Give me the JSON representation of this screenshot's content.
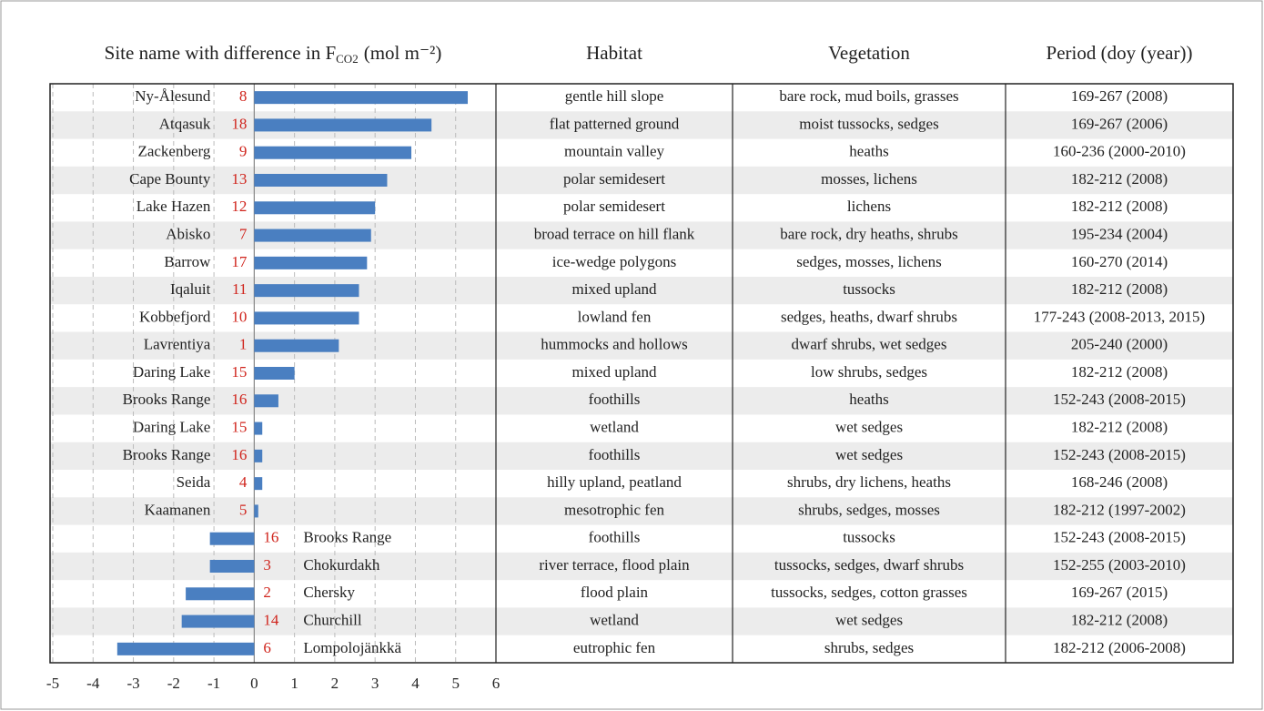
{
  "chart_data": {
    "type": "bar",
    "orientation": "horizontal",
    "title": "Site name with difference in F",
    "title_subscript": "CO2",
    "unit": "(mol m⁻²)",
    "categories": [
      "Ny-Ålesund",
      "Atqasuk",
      "Zackenberg",
      "Cape Bounty",
      "Lake Hazen",
      "Abisko",
      "Barrow",
      "Iqaluit",
      "Kobbefjord",
      "Lavrentiya",
      "Daring Lake",
      "Brooks Range",
      "Daring Lake",
      "Brooks Range",
      "Seida",
      "Kaamanen",
      "Brooks Range",
      "Chokurdakh",
      "Chersky",
      "Churchill",
      "Lompolojänkkä"
    ],
    "site_ids": [
      8,
      18,
      9,
      13,
      12,
      7,
      17,
      11,
      10,
      1,
      15,
      16,
      15,
      16,
      4,
      5,
      16,
      3,
      2,
      14,
      6
    ],
    "values": [
      5.3,
      4.4,
      3.9,
      3.3,
      3.0,
      2.9,
      2.8,
      2.6,
      2.6,
      2.1,
      1.0,
      0.6,
      0.2,
      0.2,
      0.2,
      0.1,
      -1.1,
      -1.1,
      -1.7,
      -1.8,
      -3.4
    ],
    "color": "#4a7fc1",
    "xlim": [
      -5,
      6
    ],
    "xticks": [
      -5,
      -4,
      -3,
      -2,
      -1,
      0,
      1,
      2,
      3,
      4,
      5,
      6
    ],
    "grid": true
  },
  "table": {
    "columns": [
      "Habitat",
      "Vegetation",
      "Period (doy (year))"
    ],
    "rows": [
      [
        "gentle hill slope",
        "bare rock, mud boils, grasses",
        "169-267 (2008)"
      ],
      [
        "flat patterned ground",
        "moist tussocks, sedges",
        "169-267 (2006)"
      ],
      [
        "mountain valley",
        "heaths",
        "160-236 (2000-2010)"
      ],
      [
        "polar semidesert",
        "mosses, lichens",
        "182-212 (2008)"
      ],
      [
        "polar semidesert",
        "lichens",
        "182-212 (2008)"
      ],
      [
        "broad terrace on hill flank",
        "bare rock, dry heaths, shrubs",
        "195-234 (2004)"
      ],
      [
        "ice-wedge polygons",
        "sedges, mosses, lichens",
        "160-270 (2014)"
      ],
      [
        "mixed upland",
        "tussocks",
        "182-212 (2008)"
      ],
      [
        "lowland fen",
        "sedges, heaths, dwarf shrubs",
        "177-243 (2008-2013, 2015)"
      ],
      [
        "hummocks and hollows",
        "dwarf shrubs, wet sedges",
        "205-240 (2000)"
      ],
      [
        "mixed upland",
        "low shrubs, sedges",
        "182-212 (2008)"
      ],
      [
        "foothills",
        "heaths",
        "152-243 (2008-2015)"
      ],
      [
        "wetland",
        "wet sedges",
        "182-212 (2008)"
      ],
      [
        "foothills",
        "wet sedges",
        "152-243 (2008-2015)"
      ],
      [
        "hilly upland, peatland",
        "shrubs, dry lichens, heaths",
        "168-246 (2008)"
      ],
      [
        "mesotrophic fen",
        "shrubs, sedges, mosses",
        "182-212 (1997-2002)"
      ],
      [
        "foothills",
        "tussocks",
        "152-243 (2008-2015)"
      ],
      [
        "river terrace, flood plain",
        "tussocks, sedges, dwarf shrubs",
        "152-255 (2003-2010)"
      ],
      [
        "flood plain",
        "tussocks, sedges, cotton grasses",
        "169-267 (2015)"
      ],
      [
        "wetland",
        "wet sedges",
        "182-212 (2008)"
      ],
      [
        "eutrophic fen",
        "shrubs, sedges",
        "182-212 (2006-2008)"
      ]
    ]
  }
}
